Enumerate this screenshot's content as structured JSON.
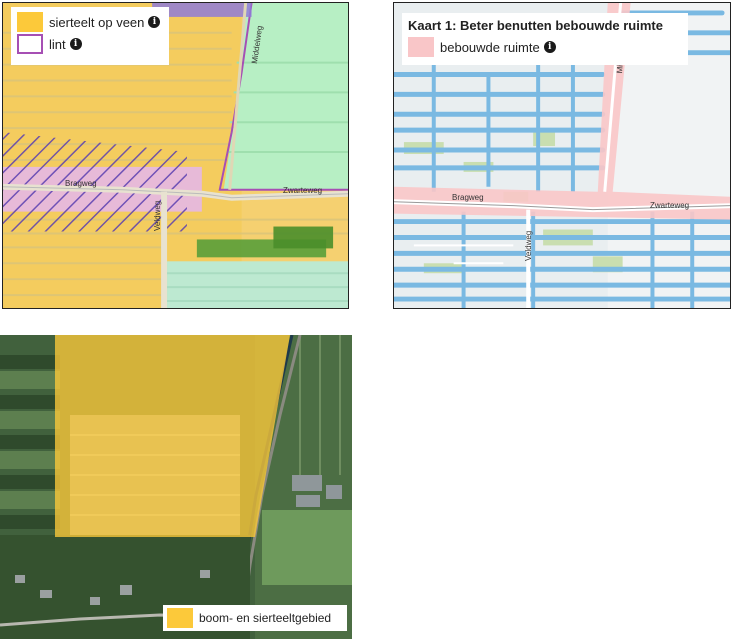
{
  "colors": {
    "sierteelt_op_veen": "#fcc93a",
    "lint": "#a64fb4",
    "bebouwde_ruimte": "#f9c6c8",
    "water": "#7ab9e2",
    "boom_en_sierteeltgebied": "#fcc93a"
  },
  "maps": [
    {
      "legend": {
        "items": [
          {
            "label": "sierteelt op veen",
            "icon": "info-icon"
          },
          {
            "label": "lint",
            "icon": "info-icon"
          }
        ]
      },
      "streets": {
        "road1": "Bragweg",
        "road2": "Zwarteweg",
        "road3": "Veldweg",
        "road4": "Middelweg"
      }
    },
    {
      "legend": {
        "title": "Kaart 1: Beter benutten bebouwde ruimte",
        "items": [
          {
            "label": "bebouwde ruimte",
            "icon": "info-icon"
          }
        ]
      },
      "streets": {
        "road1": "Bragweg",
        "road2": "Zwarteweg",
        "road3": "Veldweg",
        "road4": "Middelweg"
      }
    },
    {
      "legend": {
        "items": [
          {
            "label": "boom- en sierteeltgebied"
          }
        ]
      }
    }
  ]
}
